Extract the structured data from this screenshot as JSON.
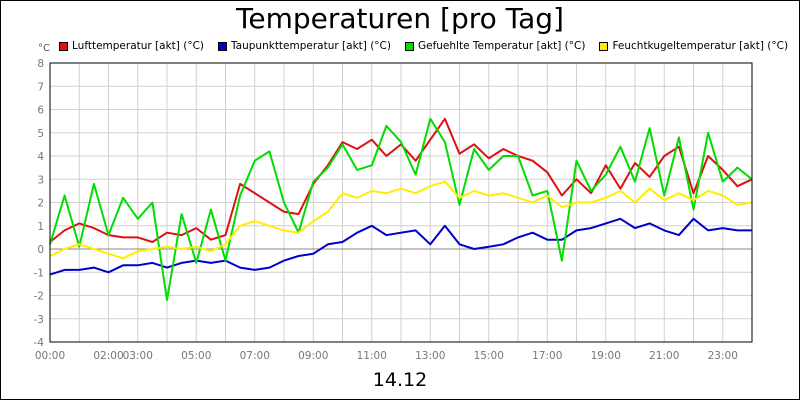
{
  "chart_data": {
    "type": "line",
    "title": "Temperaturen [pro Tag]",
    "date_label": "14.12",
    "unit_label": "°C",
    "ylim": [
      -4,
      8
    ],
    "xlim": [
      0,
      24
    ],
    "y_ticks": [
      -4,
      -3,
      -2,
      -1,
      0,
      1,
      2,
      3,
      4,
      5,
      6,
      7,
      8
    ],
    "x_tick_labels": [
      {
        "hour": 0,
        "label": "00:00"
      },
      {
        "hour": 2,
        "label": "02:00"
      },
      {
        "hour": 3,
        "label": "03:00"
      },
      {
        "hour": 5,
        "label": "05:00"
      },
      {
        "hour": 7,
        "label": "07:00"
      },
      {
        "hour": 9,
        "label": "09:00"
      },
      {
        "hour": 11,
        "label": "11:00"
      },
      {
        "hour": 13,
        "label": "13:00"
      },
      {
        "hour": 15,
        "label": "15:00"
      },
      {
        "hour": 17,
        "label": "17:00"
      },
      {
        "hour": 19,
        "label": "19:00"
      },
      {
        "hour": 21,
        "label": "21:00"
      },
      {
        "hour": 23,
        "label": "23:00"
      }
    ],
    "grid": true,
    "legend_position": "top",
    "series": [
      {
        "name": "Lufttemperatur [akt] (°C)",
        "color": "#e01010",
        "x": [
          0,
          0.5,
          1,
          1.5,
          2,
          2.5,
          3,
          3.5,
          4,
          4.5,
          5,
          5.5,
          6,
          6.5,
          7,
          7.5,
          8,
          8.5,
          9,
          9.5,
          10,
          10.5,
          11,
          11.5,
          12,
          12.5,
          13,
          13.5,
          14,
          14.5,
          15,
          15.5,
          16,
          16.5,
          17,
          17.5,
          18,
          18.5,
          19,
          19.5,
          20,
          20.5,
          21,
          21.5,
          22,
          22.5,
          23,
          23.5,
          24
        ],
        "y": [
          0.3,
          0.8,
          1.1,
          0.9,
          0.6,
          0.5,
          0.5,
          0.3,
          0.7,
          0.6,
          0.9,
          0.4,
          0.6,
          2.8,
          2.4,
          2.0,
          1.6,
          1.5,
          2.8,
          3.6,
          4.6,
          4.3,
          4.7,
          4.0,
          4.5,
          3.8,
          4.7,
          5.6,
          4.1,
          4.5,
          3.9,
          4.3,
          4.0,
          3.8,
          3.3,
          2.3,
          3.0,
          2.4,
          3.6,
          2.6,
          3.7,
          3.1,
          4.0,
          4.4,
          2.4,
          4.0,
          3.4,
          2.7,
          3.0
        ]
      },
      {
        "name": "Taupunkttemperatur [akt] (°C)",
        "color": "#0000cc",
        "x": [
          0,
          0.5,
          1,
          1.5,
          2,
          2.5,
          3,
          3.5,
          4,
          4.5,
          5,
          5.5,
          6,
          6.5,
          7,
          7.5,
          8,
          8.5,
          9,
          9.5,
          10,
          10.5,
          11,
          11.5,
          12,
          12.5,
          13,
          13.5,
          14,
          14.5,
          15,
          15.5,
          16,
          16.5,
          17,
          17.5,
          18,
          18.5,
          19,
          19.5,
          20,
          20.5,
          21,
          21.5,
          22,
          22.5,
          23,
          23.5,
          24
        ],
        "y": [
          -1.1,
          -0.9,
          -0.9,
          -0.8,
          -1.0,
          -0.7,
          -0.7,
          -0.6,
          -0.8,
          -0.6,
          -0.5,
          -0.6,
          -0.5,
          -0.8,
          -0.9,
          -0.8,
          -0.5,
          -0.3,
          -0.2,
          0.2,
          0.3,
          0.7,
          1.0,
          0.6,
          0.7,
          0.8,
          0.2,
          1.0,
          0.2,
          0.0,
          0.1,
          0.2,
          0.5,
          0.7,
          0.4,
          0.4,
          0.8,
          0.9,
          1.1,
          1.3,
          0.9,
          1.1,
          0.8,
          0.6,
          1.3,
          0.8,
          0.9,
          0.8,
          0.8
        ]
      },
      {
        "name": "Gefuehlte Temperatur [akt] (°C)",
        "color": "#00dd00",
        "x": [
          0,
          0.5,
          1,
          1.5,
          2,
          2.5,
          3,
          3.5,
          4,
          4.5,
          5,
          5.5,
          6,
          6.5,
          7,
          7.5,
          8,
          8.5,
          9,
          9.5,
          10,
          10.5,
          11,
          11.5,
          12,
          12.5,
          13,
          13.5,
          14,
          14.5,
          15,
          15.5,
          16,
          16.5,
          17,
          17.5,
          18,
          18.5,
          19,
          19.5,
          20,
          20.5,
          21,
          21.5,
          22,
          22.5,
          23,
          23.5,
          24
        ],
        "y": [
          0.2,
          2.3,
          0.1,
          2.8,
          0.6,
          2.2,
          1.3,
          2.0,
          -2.2,
          1.5,
          -0.6,
          1.7,
          -0.5,
          2.3,
          3.8,
          4.2,
          2.0,
          0.7,
          2.9,
          3.5,
          4.5,
          3.4,
          3.6,
          5.3,
          4.6,
          3.2,
          5.6,
          4.6,
          1.9,
          4.3,
          3.4,
          4.0,
          4.0,
          2.3,
          2.5,
          -0.5,
          3.8,
          2.5,
          3.2,
          4.4,
          2.9,
          5.2,
          2.3,
          4.8,
          1.7,
          5.0,
          2.9,
          3.5,
          3.0
        ]
      },
      {
        "name": "Feuchtkugeltemperatur [akt] (°C)",
        "color": "#ffee00",
        "x": [
          0,
          0.5,
          1,
          1.5,
          2,
          2.5,
          3,
          3.5,
          4,
          4.5,
          5,
          5.5,
          6,
          6.5,
          7,
          7.5,
          8,
          8.5,
          9,
          9.5,
          10,
          10.5,
          11,
          11.5,
          12,
          12.5,
          13,
          13.5,
          14,
          14.5,
          15,
          15.5,
          16,
          16.5,
          17,
          17.5,
          18,
          18.5,
          19,
          19.5,
          20,
          20.5,
          21,
          21.5,
          22,
          22.5,
          23,
          23.5,
          24
        ],
        "y": [
          -0.3,
          0.0,
          0.2,
          0.0,
          -0.2,
          -0.4,
          -0.1,
          0.0,
          0.1,
          0.0,
          0.1,
          -0.1,
          0.2,
          1.0,
          1.2,
          1.0,
          0.8,
          0.7,
          1.2,
          1.6,
          2.4,
          2.2,
          2.5,
          2.4,
          2.6,
          2.4,
          2.7,
          2.9,
          2.2,
          2.5,
          2.3,
          2.4,
          2.2,
          2.0,
          2.3,
          1.8,
          2.0,
          2.0,
          2.2,
          2.5,
          2.0,
          2.6,
          2.1,
          2.4,
          2.1,
          2.5,
          2.3,
          1.9,
          2.0
        ]
      }
    ]
  }
}
